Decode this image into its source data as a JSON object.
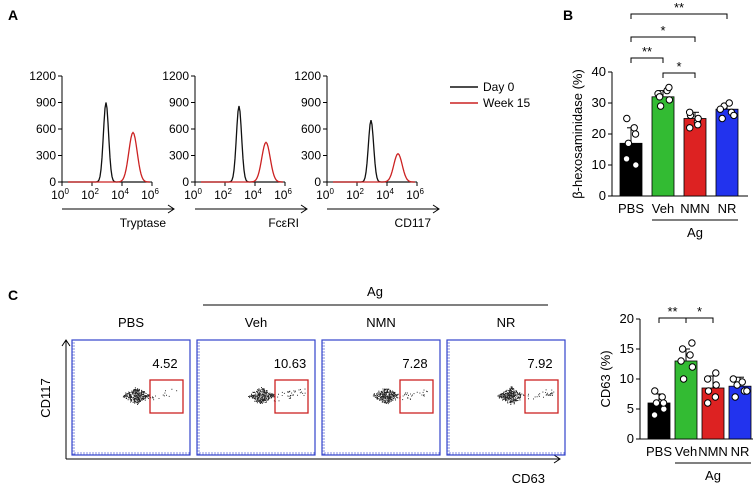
{
  "panels": {
    "a": "A",
    "b": "B",
    "c": "C"
  },
  "colors": {
    "day0": "#111111",
    "week15": "#cc2222",
    "pbs": "#000000",
    "veh": "#33bb33",
    "nmn": "#dd2222",
    "nr": "#2233ee",
    "gate": "#cc2222",
    "flow_frame": "#3344cc"
  },
  "histograms": {
    "y_ticks": [
      "0",
      "300",
      "600",
      "900",
      "1200"
    ],
    "x_tick_labels": [
      "10",
      "10",
      "10",
      "10"
    ],
    "x_tick_exps": [
      "0",
      "2",
      "4",
      "6"
    ],
    "legend": [
      {
        "label": "Day 0",
        "color": "#111111"
      },
      {
        "label": "Week 15",
        "color": "#cc2222"
      }
    ],
    "plots": [
      {
        "marker": "Tryptase",
        "day0_peak": 900,
        "week15_peak": 560
      },
      {
        "marker": "FcεRI",
        "day0_peak": 860,
        "week15_peak": 450
      },
      {
        "marker": "CD117",
        "day0_peak": 700,
        "week15_peak": 320
      }
    ]
  },
  "flow": {
    "group_label": "Ag",
    "y_label": "CD117",
    "x_label": "CD63",
    "plots": [
      {
        "condition": "PBS",
        "value": "4.52"
      },
      {
        "condition": "Veh",
        "value": "10.63"
      },
      {
        "condition": "NMN",
        "value": "7.28"
      },
      {
        "condition": "NR",
        "value": "7.92"
      }
    ]
  },
  "chart_data": [
    {
      "type": "bar",
      "id": "B",
      "ylabel": "β-hexosaminidase (%)",
      "categories": [
        "PBS",
        "Veh",
        "NMN",
        "NR"
      ],
      "values": [
        17,
        32,
        25,
        28
      ],
      "errors": [
        5,
        2,
        2,
        2
      ],
      "points": [
        [
          12,
          10,
          17,
          22,
          25,
          20
        ],
        [
          29,
          31,
          33,
          34,
          32,
          35
        ],
        [
          22,
          24,
          26,
          25,
          27,
          23
        ],
        [
          25,
          27,
          29,
          30,
          28,
          26
        ]
      ],
      "ylim": [
        0,
        40
      ],
      "yticks": [
        "0",
        "10",
        "20",
        "30",
        "40"
      ],
      "group_label": "Ag",
      "significance": [
        {
          "from": 0,
          "to": 3,
          "label": "**"
        },
        {
          "from": 0,
          "to": 2,
          "label": "*"
        },
        {
          "from": 0,
          "to": 1,
          "label": "**"
        },
        {
          "from": 1,
          "to": 2,
          "label": "*"
        }
      ]
    },
    {
      "type": "bar",
      "id": "C",
      "ylabel": "CD63 (%)",
      "categories": [
        "PBS",
        "Veh",
        "NMN",
        "NR"
      ],
      "values": [
        6,
        13,
        8.5,
        8.8
      ],
      "errors": [
        1.5,
        2,
        2,
        1.5
      ],
      "points": [
        [
          4,
          5,
          6,
          7,
          8,
          6
        ],
        [
          10,
          12,
          13,
          14,
          15,
          16
        ],
        [
          6,
          7,
          8,
          9,
          10,
          11
        ],
        [
          7,
          8,
          9,
          9.5,
          10,
          8
        ]
      ],
      "ylim": [
        0,
        20
      ],
      "yticks": [
        "0",
        "5",
        "10",
        "15",
        "20"
      ],
      "group_label": "Ag",
      "significance": [
        {
          "from": 0,
          "to": 1,
          "label": "**"
        },
        {
          "from": 1,
          "to": 2,
          "label": "*"
        }
      ]
    }
  ]
}
